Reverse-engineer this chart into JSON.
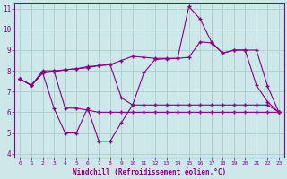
{
  "xlabel": "Windchill (Refroidissement éolien,°C)",
  "background_color": "#cce8e8",
  "grid_color": "#aacccc",
  "line_color": "#880088",
  "xlim": [
    -0.5,
    23.5
  ],
  "ylim": [
    3.8,
    11.3
  ],
  "yticks": [
    4,
    5,
    6,
    7,
    8,
    9,
    10,
    11
  ],
  "xticks": [
    0,
    1,
    2,
    3,
    4,
    5,
    6,
    7,
    8,
    9,
    10,
    11,
    12,
    13,
    14,
    15,
    16,
    17,
    18,
    19,
    20,
    21,
    22,
    23
  ],
  "line1_x": [
    0,
    1,
    2,
    3,
    4,
    5,
    6,
    7,
    8,
    9,
    10,
    11,
    12,
    13,
    14,
    15,
    16,
    17,
    18,
    19,
    20,
    21,
    22,
    23
  ],
  "line1_y": [
    7.6,
    7.3,
    8.0,
    8.0,
    6.2,
    6.2,
    6.1,
    6.0,
    6.0,
    6.0,
    6.0,
    6.0,
    6.0,
    6.0,
    6.0,
    6.0,
    6.0,
    6.0,
    6.0,
    6.0,
    6.0,
    6.0,
    6.0,
    6.0
  ],
  "line2_x": [
    0,
    1,
    2,
    3,
    4,
    5,
    6,
    7,
    8,
    9,
    10,
    11,
    12,
    13,
    14,
    15,
    16,
    17,
    18,
    19,
    20,
    21,
    22,
    23
  ],
  "line2_y": [
    7.6,
    7.3,
    7.9,
    8.0,
    8.05,
    8.1,
    8.2,
    8.25,
    8.3,
    8.5,
    8.7,
    8.65,
    8.6,
    8.6,
    8.6,
    11.1,
    10.5,
    9.4,
    8.85,
    9.0,
    9.0,
    7.3,
    6.5,
    6.0
  ],
  "line3_x": [
    0,
    1,
    2,
    3,
    4,
    5,
    6,
    7,
    8,
    9,
    10,
    11,
    12,
    13,
    14,
    15,
    16,
    17,
    18,
    19,
    20,
    21,
    22,
    23
  ],
  "line3_y": [
    7.6,
    7.3,
    7.9,
    7.95,
    8.05,
    8.1,
    8.15,
    8.25,
    8.3,
    6.7,
    6.35,
    7.9,
    8.55,
    8.58,
    8.6,
    8.65,
    9.4,
    9.35,
    8.85,
    9.0,
    9.0,
    9.0,
    7.25,
    6.0
  ],
  "line4_x": [
    0,
    1,
    2,
    3,
    4,
    5,
    6,
    7,
    8,
    9,
    10,
    11,
    12,
    13,
    14,
    15,
    16,
    17,
    18,
    19,
    20,
    21,
    22,
    23
  ],
  "line4_y": [
    7.6,
    7.3,
    7.9,
    6.2,
    5.0,
    5.0,
    6.2,
    4.6,
    4.6,
    5.5,
    6.35,
    6.35,
    6.35,
    6.35,
    6.35,
    6.35,
    6.35,
    6.35,
    6.35,
    6.35,
    6.35,
    6.35,
    6.35,
    6.0
  ]
}
